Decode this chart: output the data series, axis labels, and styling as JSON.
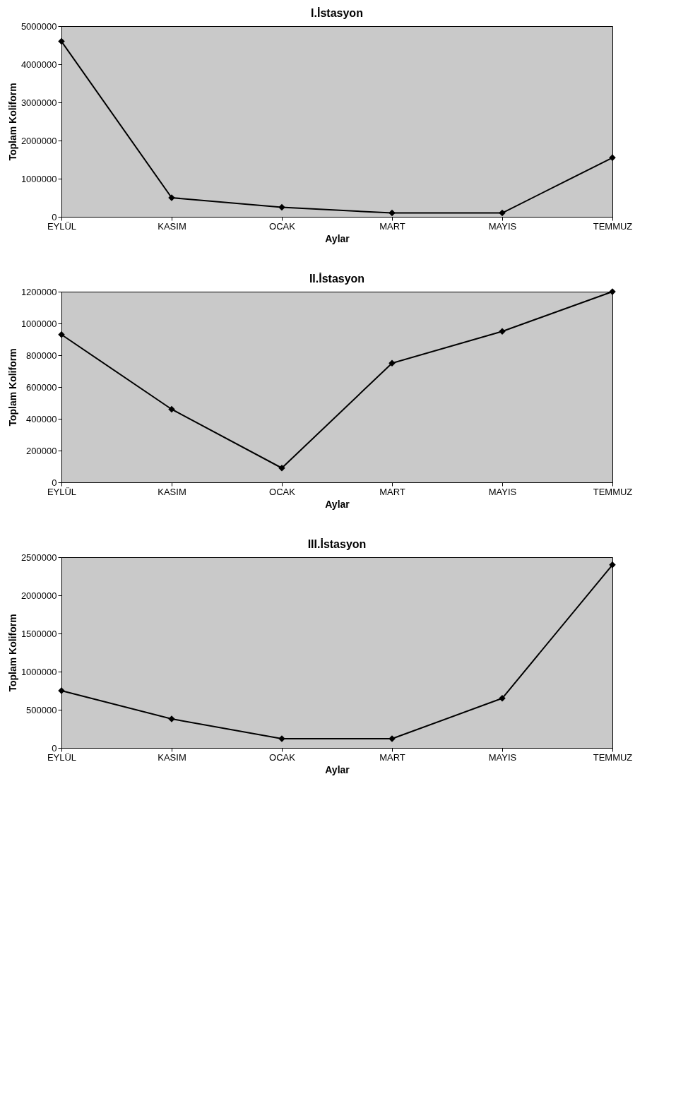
{
  "chart_data": [
    {
      "type": "line",
      "title": "I.İstasyon",
      "xlabel": "Aylar",
      "ylabel": "Toplam Koliform",
      "categories": [
        "EYLÜL",
        "KASIM",
        "OCAK",
        "MART",
        "MAYIS",
        "TEMMUZ"
      ],
      "series": [
        {
          "color": "#000000",
          "values": [
            4600000,
            500000,
            250000,
            100000,
            100000,
            1550000
          ]
        }
      ],
      "ylim": [
        0,
        5000000
      ],
      "yticks": [
        0,
        1000000,
        2000000,
        3000000,
        4000000,
        5000000
      ],
      "grid": false,
      "marker": "diamond",
      "line_style": "solid"
    },
    {
      "type": "line",
      "title": "II.İstasyon",
      "xlabel": "Aylar",
      "ylabel": "Toplam Koliform",
      "categories": [
        "EYLÜL",
        "KASIM",
        "OCAK",
        "MART",
        "MAYIS",
        "TEMMUZ"
      ],
      "series": [
        {
          "color": "#000000",
          "values": [
            930000,
            460000,
            90000,
            750000,
            950000,
            1200000
          ]
        }
      ],
      "ylim": [
        0,
        1200000
      ],
      "yticks": [
        0,
        200000,
        400000,
        600000,
        800000,
        1000000,
        1200000
      ],
      "grid": false,
      "marker": "diamond",
      "line_style": "solid"
    },
    {
      "type": "line",
      "title": "III.İstasyon",
      "xlabel": "Aylar",
      "ylabel": "Toplam Koliform",
      "categories": [
        "EYLÜL",
        "KASIM",
        "OCAK",
        "MART",
        "MAYIS",
        "TEMMUZ"
      ],
      "series": [
        {
          "color": "#000000",
          "values": [
            750000,
            380000,
            120000,
            120000,
            650000,
            2400000
          ]
        }
      ],
      "ylim": [
        0,
        2500000
      ],
      "yticks": [
        0,
        500000,
        1000000,
        1500000,
        2000000,
        2500000
      ],
      "grid": false,
      "marker": "diamond",
      "line_style": "solid"
    }
  ]
}
